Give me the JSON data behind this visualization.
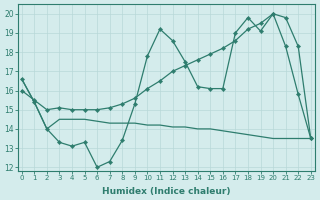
{
  "xlabel": "Humidex (Indice chaleur)",
  "bg_color": "#d4ecec",
  "line_color": "#2e7d6e",
  "grid_color": "#b8d8d8",
  "xlim": [
    -0.3,
    23.3
  ],
  "ylim": [
    11.8,
    20.5
  ],
  "yticks": [
    12,
    13,
    14,
    15,
    16,
    17,
    18,
    19,
    20
  ],
  "xticks": [
    0,
    1,
    2,
    3,
    4,
    5,
    6,
    7,
    8,
    9,
    10,
    11,
    12,
    13,
    14,
    15,
    16,
    17,
    18,
    19,
    20,
    21,
    22,
    23
  ],
  "line1_x": [
    0,
    1,
    2,
    3,
    4,
    5,
    6,
    7,
    8,
    9,
    10,
    11,
    12,
    13,
    14,
    15,
    16,
    17,
    18,
    19,
    20,
    21,
    22,
    23
  ],
  "line1_y": [
    16.6,
    15.4,
    14.0,
    13.3,
    13.1,
    13.3,
    12.0,
    12.3,
    13.4,
    15.3,
    17.8,
    19.2,
    18.6,
    17.5,
    16.2,
    16.1,
    16.1,
    19.0,
    19.8,
    19.1,
    20.0,
    18.3,
    15.8,
    13.5
  ],
  "line2_x": [
    0,
    1,
    2,
    3,
    4,
    5,
    6,
    7,
    8,
    9,
    10,
    11,
    12,
    13,
    14,
    15,
    16,
    17,
    18,
    19,
    20,
    21,
    22,
    23
  ],
  "line2_y": [
    16.0,
    15.5,
    15.0,
    15.1,
    15.0,
    15.0,
    15.0,
    15.1,
    15.3,
    15.6,
    16.1,
    16.5,
    17.0,
    17.3,
    17.6,
    17.9,
    18.2,
    18.6,
    19.2,
    19.5,
    20.0,
    19.8,
    18.3,
    13.5
  ],
  "line3_x": [
    0,
    1,
    2,
    3,
    4,
    5,
    6,
    7,
    8,
    9,
    10,
    11,
    12,
    13,
    14,
    15,
    16,
    17,
    18,
    19,
    20,
    21,
    22,
    23
  ],
  "line3_y": [
    16.6,
    15.4,
    14.0,
    14.5,
    14.5,
    14.5,
    14.4,
    14.3,
    14.3,
    14.3,
    14.2,
    14.2,
    14.1,
    14.1,
    14.0,
    14.0,
    13.9,
    13.8,
    13.7,
    13.6,
    13.5,
    13.5,
    13.5,
    13.5
  ]
}
